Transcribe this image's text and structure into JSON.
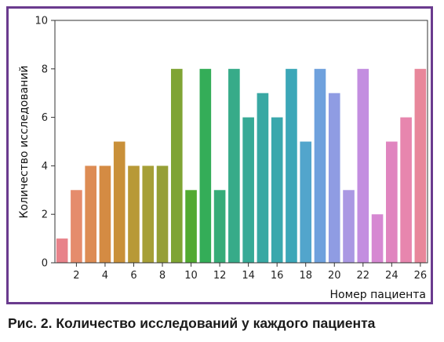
{
  "caption": "Рис. 2. Количество исследований у каждого пациента",
  "chart_data": {
    "type": "bar",
    "title": "",
    "xlabel": "Номер пациента",
    "ylabel": "Количество исследований",
    "categories": [
      1,
      2,
      3,
      4,
      5,
      6,
      7,
      8,
      9,
      10,
      11,
      12,
      13,
      14,
      15,
      16,
      17,
      18,
      19,
      20,
      21,
      22,
      23,
      24,
      25,
      26
    ],
    "values": [
      1,
      3,
      4,
      4,
      5,
      4,
      4,
      4,
      8,
      3,
      8,
      3,
      8,
      6,
      7,
      6,
      8,
      5,
      8,
      7,
      3,
      8,
      2,
      5,
      6,
      8
    ],
    "x_tick_labels": [
      "2",
      "4",
      "6",
      "8",
      "10",
      "12",
      "14",
      "16",
      "18",
      "20",
      "22",
      "24",
      "26"
    ],
    "y_ticks": [
      0,
      2,
      4,
      6,
      8,
      10
    ],
    "ylim": [
      0,
      10
    ],
    "grid": false,
    "legend": "none",
    "colors": [
      "#e8828a",
      "#e58c6c",
      "#dd8c54",
      "#d48b43",
      "#c99039",
      "#b89937",
      "#a69f37",
      "#969f36",
      "#7fa434",
      "#52aa31",
      "#34ad58",
      "#36ac78",
      "#37ab89",
      "#37aa96",
      "#39a8a3",
      "#3aa8ad",
      "#3ca7b8",
      "#52a5cc",
      "#6fa1dd",
      "#8f9ce3",
      "#aa98e3",
      "#c38ee0",
      "#d688d2",
      "#e085bf",
      "#e786ae",
      "#e8879b"
    ]
  }
}
